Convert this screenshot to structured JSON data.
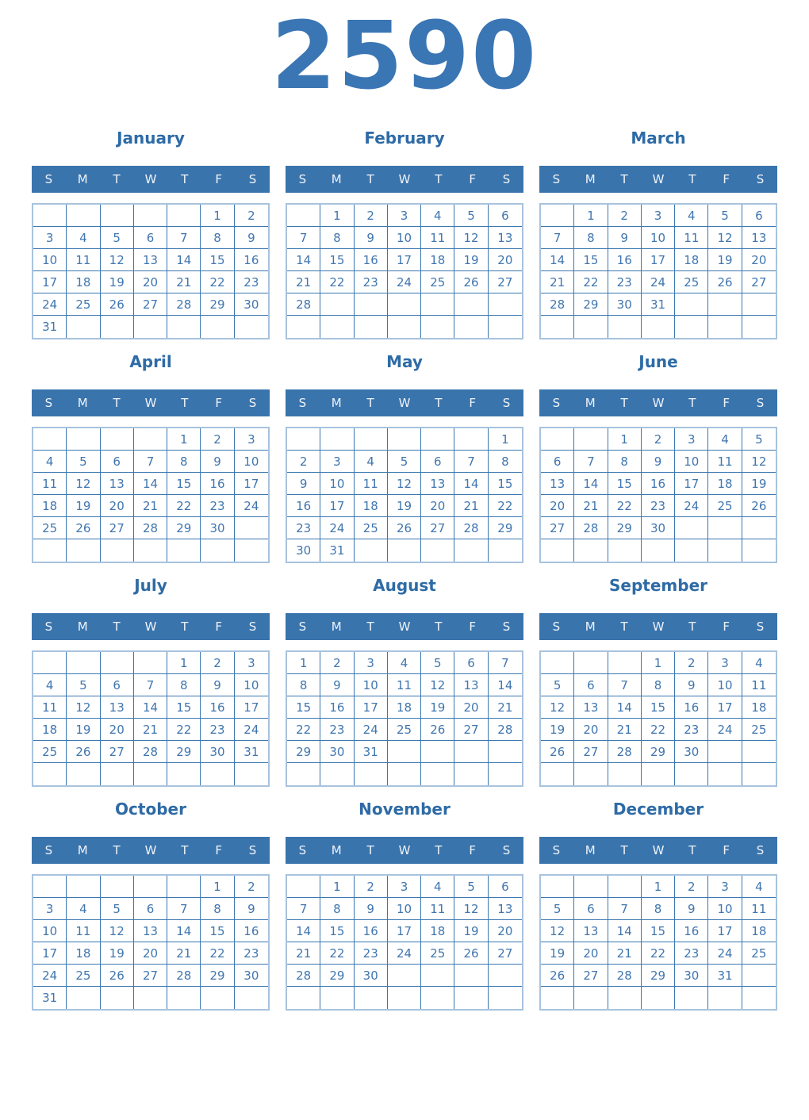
{
  "year": "2590",
  "weekdays": [
    "S",
    "M",
    "T",
    "W",
    "T",
    "F",
    "S"
  ],
  "colors": {
    "header_bg": "#3a74ad",
    "header_text": "#eef3f8",
    "year_title": "#3b76b4",
    "month_title": "#2e6ba6",
    "day_number": "#4076af",
    "grid_inner_border": "#3b77b0",
    "grid_outer_border": "#a8c3dd",
    "page_bg": "#ffffff"
  },
  "months": [
    {
      "name": "January",
      "rows": [
        [
          "",
          "",
          "",
          "",
          "",
          "1",
          "2"
        ],
        [
          "3",
          "4",
          "5",
          "6",
          "7",
          "8",
          "9"
        ],
        [
          "10",
          "11",
          "12",
          "13",
          "14",
          "15",
          "16"
        ],
        [
          "17",
          "18",
          "19",
          "20",
          "21",
          "22",
          "23"
        ],
        [
          "24",
          "25",
          "26",
          "27",
          "28",
          "29",
          "30"
        ],
        [
          "31",
          "",
          "",
          "",
          "",
          "",
          ""
        ]
      ]
    },
    {
      "name": "February",
      "rows": [
        [
          "",
          "1",
          "2",
          "3",
          "4",
          "5",
          "6"
        ],
        [
          "7",
          "8",
          "9",
          "10",
          "11",
          "12",
          "13"
        ],
        [
          "14",
          "15",
          "16",
          "17",
          "18",
          "19",
          "20"
        ],
        [
          "21",
          "22",
          "23",
          "24",
          "25",
          "26",
          "27"
        ],
        [
          "28",
          "",
          "",
          "",
          "",
          "",
          ""
        ],
        [
          "",
          "",
          "",
          "",
          "",
          "",
          ""
        ]
      ]
    },
    {
      "name": "March",
      "rows": [
        [
          "",
          "1",
          "2",
          "3",
          "4",
          "5",
          "6"
        ],
        [
          "7",
          "8",
          "9",
          "10",
          "11",
          "12",
          "13"
        ],
        [
          "14",
          "15",
          "16",
          "17",
          "18",
          "19",
          "20"
        ],
        [
          "21",
          "22",
          "23",
          "24",
          "25",
          "26",
          "27"
        ],
        [
          "28",
          "29",
          "30",
          "31",
          "",
          "",
          ""
        ],
        [
          "",
          "",
          "",
          "",
          "",
          "",
          ""
        ]
      ]
    },
    {
      "name": "April",
      "rows": [
        [
          "",
          "",
          "",
          "",
          "1",
          "2",
          "3"
        ],
        [
          "4",
          "5",
          "6",
          "7",
          "8",
          "9",
          "10"
        ],
        [
          "11",
          "12",
          "13",
          "14",
          "15",
          "16",
          "17"
        ],
        [
          "18",
          "19",
          "20",
          "21",
          "22",
          "23",
          "24"
        ],
        [
          "25",
          "26",
          "27",
          "28",
          "29",
          "30",
          ""
        ],
        [
          "",
          "",
          "",
          "",
          "",
          "",
          ""
        ]
      ]
    },
    {
      "name": "May",
      "rows": [
        [
          "",
          "",
          "",
          "",
          "",
          "",
          "1"
        ],
        [
          "2",
          "3",
          "4",
          "5",
          "6",
          "7",
          "8"
        ],
        [
          "9",
          "10",
          "11",
          "12",
          "13",
          "14",
          "15"
        ],
        [
          "16",
          "17",
          "18",
          "19",
          "20",
          "21",
          "22"
        ],
        [
          "23",
          "24",
          "25",
          "26",
          "27",
          "28",
          "29"
        ],
        [
          "30",
          "31",
          "",
          "",
          "",
          "",
          ""
        ]
      ]
    },
    {
      "name": "June",
      "rows": [
        [
          "",
          "",
          "1",
          "2",
          "3",
          "4",
          "5"
        ],
        [
          "6",
          "7",
          "8",
          "9",
          "10",
          "11",
          "12"
        ],
        [
          "13",
          "14",
          "15",
          "16",
          "17",
          "18",
          "19"
        ],
        [
          "20",
          "21",
          "22",
          "23",
          "24",
          "25",
          "26"
        ],
        [
          "27",
          "28",
          "29",
          "30",
          "",
          "",
          ""
        ],
        [
          "",
          "",
          "",
          "",
          "",
          "",
          ""
        ]
      ]
    },
    {
      "name": "July",
      "rows": [
        [
          "",
          "",
          "",
          "",
          "1",
          "2",
          "3"
        ],
        [
          "4",
          "5",
          "6",
          "7",
          "8",
          "9",
          "10"
        ],
        [
          "11",
          "12",
          "13",
          "14",
          "15",
          "16",
          "17"
        ],
        [
          "18",
          "19",
          "20",
          "21",
          "22",
          "23",
          "24"
        ],
        [
          "25",
          "26",
          "27",
          "28",
          "29",
          "30",
          "31"
        ],
        [
          "",
          "",
          "",
          "",
          "",
          "",
          ""
        ]
      ]
    },
    {
      "name": "August",
      "rows": [
        [
          "1",
          "2",
          "3",
          "4",
          "5",
          "6",
          "7"
        ],
        [
          "8",
          "9",
          "10",
          "11",
          "12",
          "13",
          "14"
        ],
        [
          "15",
          "16",
          "17",
          "18",
          "19",
          "20",
          "21"
        ],
        [
          "22",
          "23",
          "24",
          "25",
          "26",
          "27",
          "28"
        ],
        [
          "29",
          "30",
          "31",
          "",
          "",
          "",
          ""
        ],
        [
          "",
          "",
          "",
          "",
          "",
          "",
          ""
        ]
      ]
    },
    {
      "name": "September",
      "rows": [
        [
          "",
          "",
          "",
          "1",
          "2",
          "3",
          "4"
        ],
        [
          "5",
          "6",
          "7",
          "8",
          "9",
          "10",
          "11"
        ],
        [
          "12",
          "13",
          "14",
          "15",
          "16",
          "17",
          "18"
        ],
        [
          "19",
          "20",
          "21",
          "22",
          "23",
          "24",
          "25"
        ],
        [
          "26",
          "27",
          "28",
          "29",
          "30",
          "",
          ""
        ],
        [
          "",
          "",
          "",
          "",
          "",
          "",
          ""
        ]
      ]
    },
    {
      "name": "October",
      "rows": [
        [
          "",
          "",
          "",
          "",
          "",
          "1",
          "2"
        ],
        [
          "3",
          "4",
          "5",
          "6",
          "7",
          "8",
          "9"
        ],
        [
          "10",
          "11",
          "12",
          "13",
          "14",
          "15",
          "16"
        ],
        [
          "17",
          "18",
          "19",
          "20",
          "21",
          "22",
          "23"
        ],
        [
          "24",
          "25",
          "26",
          "27",
          "28",
          "29",
          "30"
        ],
        [
          "31",
          "",
          "",
          "",
          "",
          "",
          ""
        ]
      ]
    },
    {
      "name": "November",
      "rows": [
        [
          "",
          "1",
          "2",
          "3",
          "4",
          "5",
          "6"
        ],
        [
          "7",
          "8",
          "9",
          "10",
          "11",
          "12",
          "13"
        ],
        [
          "14",
          "15",
          "16",
          "17",
          "18",
          "19",
          "20"
        ],
        [
          "21",
          "22",
          "23",
          "24",
          "25",
          "26",
          "27"
        ],
        [
          "28",
          "29",
          "30",
          "",
          "",
          "",
          ""
        ],
        [
          "",
          "",
          "",
          "",
          "",
          "",
          ""
        ]
      ]
    },
    {
      "name": "December",
      "rows": [
        [
          "",
          "",
          "",
          "1",
          "2",
          "3",
          "4"
        ],
        [
          "5",
          "6",
          "7",
          "8",
          "9",
          "10",
          "11"
        ],
        [
          "12",
          "13",
          "14",
          "15",
          "16",
          "17",
          "18"
        ],
        [
          "19",
          "20",
          "21",
          "22",
          "23",
          "24",
          "25"
        ],
        [
          "26",
          "27",
          "28",
          "29",
          "30",
          "31",
          ""
        ],
        [
          "",
          "",
          "",
          "",
          "",
          "",
          ""
        ]
      ]
    }
  ]
}
